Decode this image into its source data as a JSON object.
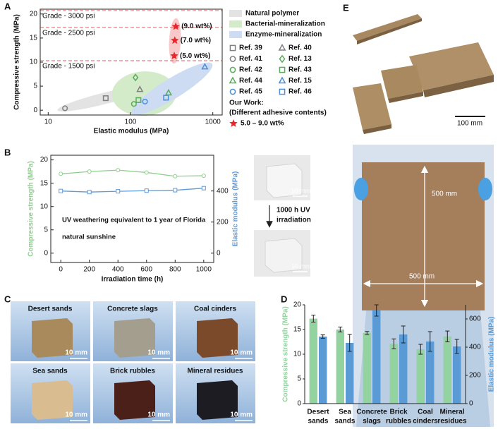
{
  "panel_labels": [
    "A",
    "B",
    "C",
    "D",
    "E"
  ],
  "chart_data": [
    {
      "type": "scatter",
      "xlabel": "Elastic modulus (MPa)",
      "ylabel": "Compressive strength (MPa)",
      "log_x": true,
      "xlim": [
        8,
        1300
      ],
      "xticks": [
        10,
        100,
        1000
      ],
      "ylim": [
        -1,
        21
      ],
      "yticks": [
        0,
        5,
        10,
        15,
        20
      ],
      "reference_lines": [
        {
          "label": "Grade - 3000 psi",
          "value": 20.7,
          "color": "#e06060"
        },
        {
          "label": "Grade - 2500 psi",
          "value": 17.2,
          "color": "#e06060"
        },
        {
          "label": "Grade - 1500 psi",
          "value": 10.3,
          "color": "#e06060"
        }
      ],
      "groups": [
        {
          "name": "Natural polymer",
          "color": "#e3e3e3",
          "marker_color": "#808080"
        },
        {
          "name": "Bacterial-mineralization",
          "color": "#d3ebc9",
          "marker_color": "#5aab5a"
        },
        {
          "name": "Enzyme-mineralization",
          "color": "#cddcf3",
          "marker_color": "#4a8fd8"
        }
      ],
      "series": [
        {
          "name": "Ref. 39",
          "marker": "square",
          "color": "#808080",
          "x": [
            50
          ],
          "values": [
            2.5
          ]
        },
        {
          "name": "Ref. 40",
          "marker": "triangle",
          "color": "#808080",
          "x": [
            130
          ],
          "values": [
            4.3
          ]
        },
        {
          "name": "Ref. 41",
          "marker": "circle",
          "color": "#808080",
          "x": [
            16
          ],
          "values": [
            0.4
          ]
        },
        {
          "name": "Ref. 13",
          "marker": "diamond",
          "color": "#5aab5a",
          "x": [
            115
          ],
          "values": [
            6.8
          ]
        },
        {
          "name": "Ref. 42",
          "marker": "circle",
          "color": "#5aab5a",
          "x": [
            110
          ],
          "values": [
            1.3
          ]
        },
        {
          "name": "Ref. 43",
          "marker": "square",
          "color": "#5aab5a",
          "x": [
            125
          ],
          "values": [
            2.1
          ]
        },
        {
          "name": "Ref. 44",
          "marker": "triangle",
          "color": "#5aab5a",
          "x": [
            290
          ],
          "values": [
            3.6
          ]
        },
        {
          "name": "Ref. 15",
          "marker": "triangle",
          "color": "#4a8fd8",
          "x": [
            800
          ],
          "values": [
            9.0
          ]
        },
        {
          "name": "Ref. 45",
          "marker": "circle",
          "color": "#4a8fd8",
          "x": [
            150
          ],
          "values": [
            1.8
          ]
        },
        {
          "name": "Ref. 46",
          "marker": "square",
          "color": "#4a8fd8",
          "x": [
            270
          ],
          "values": [
            2.6
          ]
        }
      ],
      "highlight": {
        "heading": "Our Work:",
        "subheading": "(Different adhesive contents)",
        "name": "5.0 – 9.0 wt%",
        "color": "#e8262b",
        "marker": "star",
        "x": [
          340,
          345,
          355
        ],
        "values": [
          11.3,
          14.5,
          17.4
        ],
        "value_labels": [
          "(5.0 wt%)",
          "(7.0 wt%)",
          "(9.0 wt%)"
        ]
      }
    },
    {
      "type": "line",
      "xlabel": "Irradiation time (h)",
      "ylabel": "Compressive strength (MPa)",
      "y2label": "Elastic modulus (MPa)",
      "x": [
        0,
        200,
        400,
        600,
        800,
        1000
      ],
      "xlim": [
        -70,
        1070
      ],
      "xticks": [
        0,
        200,
        400,
        600,
        800,
        1000
      ],
      "ylim": [
        -2,
        21
      ],
      "yticks": [
        0,
        5,
        10,
        15,
        20
      ],
      "y2lim": [
        -60,
        630
      ],
      "y2ticks": [
        0,
        200,
        400
      ],
      "series": [
        {
          "color": "#8ecf8e",
          "marker": "circle",
          "values": [
            17.0,
            17.5,
            17.8,
            17.3,
            16.5,
            16.6
          ]
        },
        {
          "color": "#5f9ad8",
          "marker": "square",
          "axis": "y2",
          "values": [
            400,
            393,
            398,
            402,
            405,
            418
          ]
        }
      ],
      "annotation": [
        "UV weathering equivalent to 1 year of Florida",
        "natural sunshine"
      ]
    },
    {
      "type": "bar",
      "ylabel": "Compressive strength (MPa)",
      "y2label": "Elastic modulus (MPa)",
      "categories": [
        [
          "Desert",
          "sands"
        ],
        [
          "Sea",
          "sands"
        ],
        [
          "Concrete",
          "slags"
        ],
        [
          "Brick",
          "rubbles"
        ],
        [
          "Coal",
          "cinders"
        ],
        [
          "Mineral",
          "residues"
        ]
      ],
      "ylim": [
        0,
        20
      ],
      "yticks": [
        0,
        5,
        10,
        15,
        20
      ],
      "y2lim": [
        0,
        700
      ],
      "y2ticks": [
        0,
        200,
        400,
        600
      ],
      "series": [
        {
          "color": "#92d3a0",
          "values": [
            17.2,
            15.0,
            14.3,
            12.1,
            11.0,
            13.6
          ],
          "errors": [
            0.7,
            0.5,
            0.3,
            1.0,
            1.0,
            1.1
          ]
        },
        {
          "color": "#5b9bd5",
          "axis": "y2",
          "values": [
            475,
            430,
            660,
            490,
            440,
            405
          ],
          "errors": [
            12,
            60,
            40,
            60,
            70,
            50
          ]
        }
      ]
    }
  ],
  "panel_b_photos": {
    "before_scale": "10 mm",
    "arrow_label": [
      "1000 h UV",
      "irradiation"
    ],
    "after_scale": "10 mm"
  },
  "panel_c": {
    "samples": [
      {
        "label": "Desert sands",
        "scale": "10 mm",
        "color": "#a88a5c"
      },
      {
        "label": "Concrete slags",
        "scale": "10 mm",
        "color": "#a49e8e"
      },
      {
        "label": "Coal cinders",
        "scale": "10 mm",
        "color": "#7a4a2a"
      },
      {
        "label": "Sea sands",
        "scale": "10 mm",
        "color": "#d9bd90"
      },
      {
        "label": "Brick rubbles",
        "scale": "10 mm",
        "color": "#4a2018"
      },
      {
        "label": "Mineral residues",
        "scale": "10 mm",
        "color": "#1c1c22"
      }
    ]
  },
  "panel_e": {
    "scale_bar": "100 mm",
    "dimensions": [
      "500 mm",
      "500 mm"
    ]
  }
}
